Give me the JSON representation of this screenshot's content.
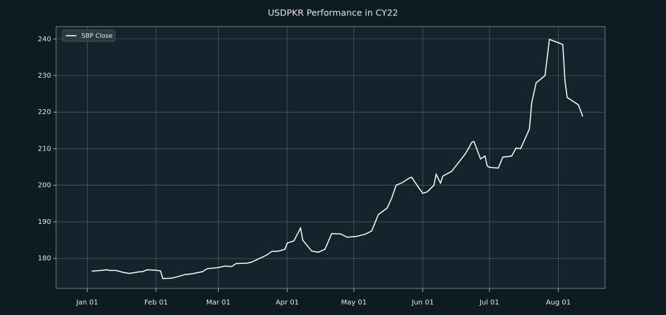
{
  "chart_data": {
    "type": "line",
    "title": "USDPKR Performance in CY22",
    "x": [
      "Jan 03",
      "Jan 07",
      "Jan 10",
      "Jan 11",
      "Jan 14",
      "Jan 17",
      "Jan 20",
      "Jan 24",
      "Jan 26",
      "Jan 28",
      "Jan 31",
      "Feb 03",
      "Feb 04",
      "Feb 08",
      "Feb 10",
      "Feb 14",
      "Feb 16",
      "Feb 18",
      "Feb 22",
      "Feb 24",
      "Mar 01",
      "Mar 04",
      "Mar 07",
      "Mar 09",
      "Mar 14",
      "Mar 16",
      "Mar 21",
      "Mar 23",
      "Mar 25",
      "Mar 28",
      "Mar 31",
      "Apr 01",
      "Apr 04",
      "Apr 07",
      "Apr 08",
      "Apr 12",
      "Apr 15",
      "Apr 18",
      "Apr 21",
      "Apr 25",
      "Apr 28",
      "May 02",
      "May 06",
      "May 09",
      "May 10",
      "May 12",
      "May 16",
      "May 18",
      "May 20",
      "May 23",
      "May 26",
      "May 27",
      "May 30",
      "Jun 01",
      "Jun 03",
      "Jun 06",
      "Jun 07",
      "Jun 09",
      "Jun 10",
      "Jun 14",
      "Jun 20",
      "Jun 21",
      "Jun 23",
      "Jun 24",
      "Jun 27",
      "Jun 29",
      "Jun 30",
      "Jul 01",
      "Jul 05",
      "Jul 07",
      "Jul 11",
      "Jul 13",
      "Jul 15",
      "Jul 19",
      "Jul 20",
      "Jul 22",
      "Jul 26",
      "Jul 27",
      "Jul 28",
      "Aug 01",
      "Aug 03",
      "Aug 04",
      "Aug 05",
      "Aug 10",
      "Aug 12"
    ],
    "series": [
      {
        "name": "SBP Close",
        "color": "#ffffff",
        "values": [
          176.5,
          176.7,
          176.9,
          176.7,
          176.7,
          176.2,
          175.9,
          176.3,
          176.4,
          176.9,
          176.8,
          176.6,
          174.5,
          174.6,
          174.9,
          175.6,
          175.7,
          175.9,
          176.4,
          177.2,
          177.5,
          177.9,
          177.8,
          178.6,
          178.7,
          179.0,
          180.4,
          181.0,
          181.9,
          182.0,
          182.5,
          184.2,
          184.8,
          188.3,
          185.0,
          182.0,
          181.7,
          182.5,
          186.8,
          186.7,
          185.8,
          186.0,
          186.6,
          187.5,
          189.0,
          192.0,
          193.8,
          196.5,
          200.0,
          200.8,
          202.0,
          202.2,
          199.5,
          197.8,
          198.2,
          200.0,
          203.0,
          200.6,
          202.5,
          203.8,
          208.5,
          209.5,
          211.7,
          212.0,
          207.2,
          208.0,
          205.3,
          204.9,
          204.7,
          207.7,
          208.0,
          210.2,
          210.0,
          215.4,
          222.5,
          228.0,
          230.0,
          235.0,
          239.9,
          239.0,
          238.5,
          228.5,
          224.0,
          222.0,
          218.8
        ]
      }
    ],
    "xlim": [
      "Dec 18",
      "Aug 22"
    ],
    "xticks": [
      "Jan 01",
      "Feb 01",
      "Mar 01",
      "Apr 01",
      "May 01",
      "Jun 01",
      "Jul 01",
      "Aug 01"
    ],
    "ylim": [
      171.8,
      243.4
    ],
    "yticks": [
      180,
      190,
      200,
      210,
      220,
      230,
      240
    ],
    "grid": true,
    "legend": "upper left"
  }
}
